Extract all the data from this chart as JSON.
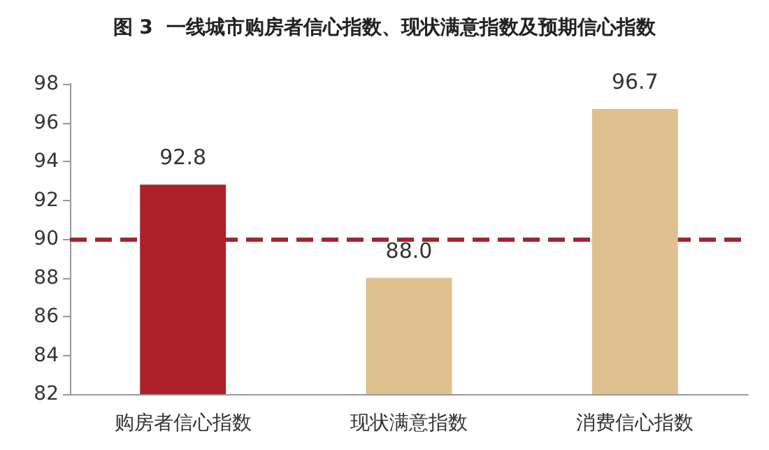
{
  "chart_data": {
    "type": "bar",
    "title": "图 3  一线城市购房者信心指数、现状满意指数及预期信心指数",
    "categories": [
      "购房者信心指数",
      "现状满意指数",
      "消费信心指数"
    ],
    "values": [
      92.8,
      88.0,
      96.7
    ],
    "colors": [
      "#ae2129",
      "#dfc08f",
      "#dfc08f"
    ],
    "value_labels": [
      "92.8",
      "88.0",
      "96.7"
    ],
    "ylim": [
      82,
      98
    ],
    "yticks": [
      82,
      84,
      86,
      88,
      90,
      92,
      94,
      96,
      98
    ],
    "grid": false,
    "ref_lines": [
      {
        "axis": "y",
        "value": 90,
        "color": "#a3262e",
        "line_style": "dashed"
      }
    ]
  }
}
